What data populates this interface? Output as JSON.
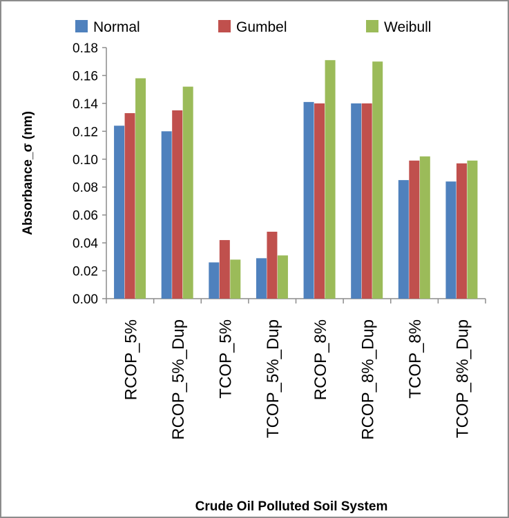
{
  "chart_data": {
    "type": "bar",
    "xlabel": "Crude Oil Polluted Soil System",
    "ylabel": "Absorbance_σ (nm)",
    "ylim": [
      0,
      0.18
    ],
    "yticks": [
      "0.00",
      "0.02",
      "0.04",
      "0.06",
      "0.08",
      "0.10",
      "0.12",
      "0.14",
      "0.16",
      "0.18"
    ],
    "grid": false,
    "legend_position": "top",
    "categories": [
      "RCOP_5%",
      "RCOP_5%_Dup",
      "TCOP_5%",
      "TCOP_5%_Dup",
      "RCOP_8%",
      "RCOP_8%_Dup",
      "TCOP_8%",
      "TCOP_8%_Dup"
    ],
    "series": [
      {
        "name": "Normal",
        "color": "#4f81bd",
        "values": [
          0.124,
          0.12,
          0.026,
          0.029,
          0.141,
          0.14,
          0.085,
          0.084
        ]
      },
      {
        "name": "Gumbel",
        "color": "#c0504d",
        "values": [
          0.133,
          0.135,
          0.042,
          0.048,
          0.14,
          0.14,
          0.099,
          0.097
        ]
      },
      {
        "name": "Weibull",
        "color": "#9bbb59",
        "values": [
          0.158,
          0.152,
          0.028,
          0.031,
          0.171,
          0.17,
          0.102,
          0.099
        ]
      }
    ]
  }
}
